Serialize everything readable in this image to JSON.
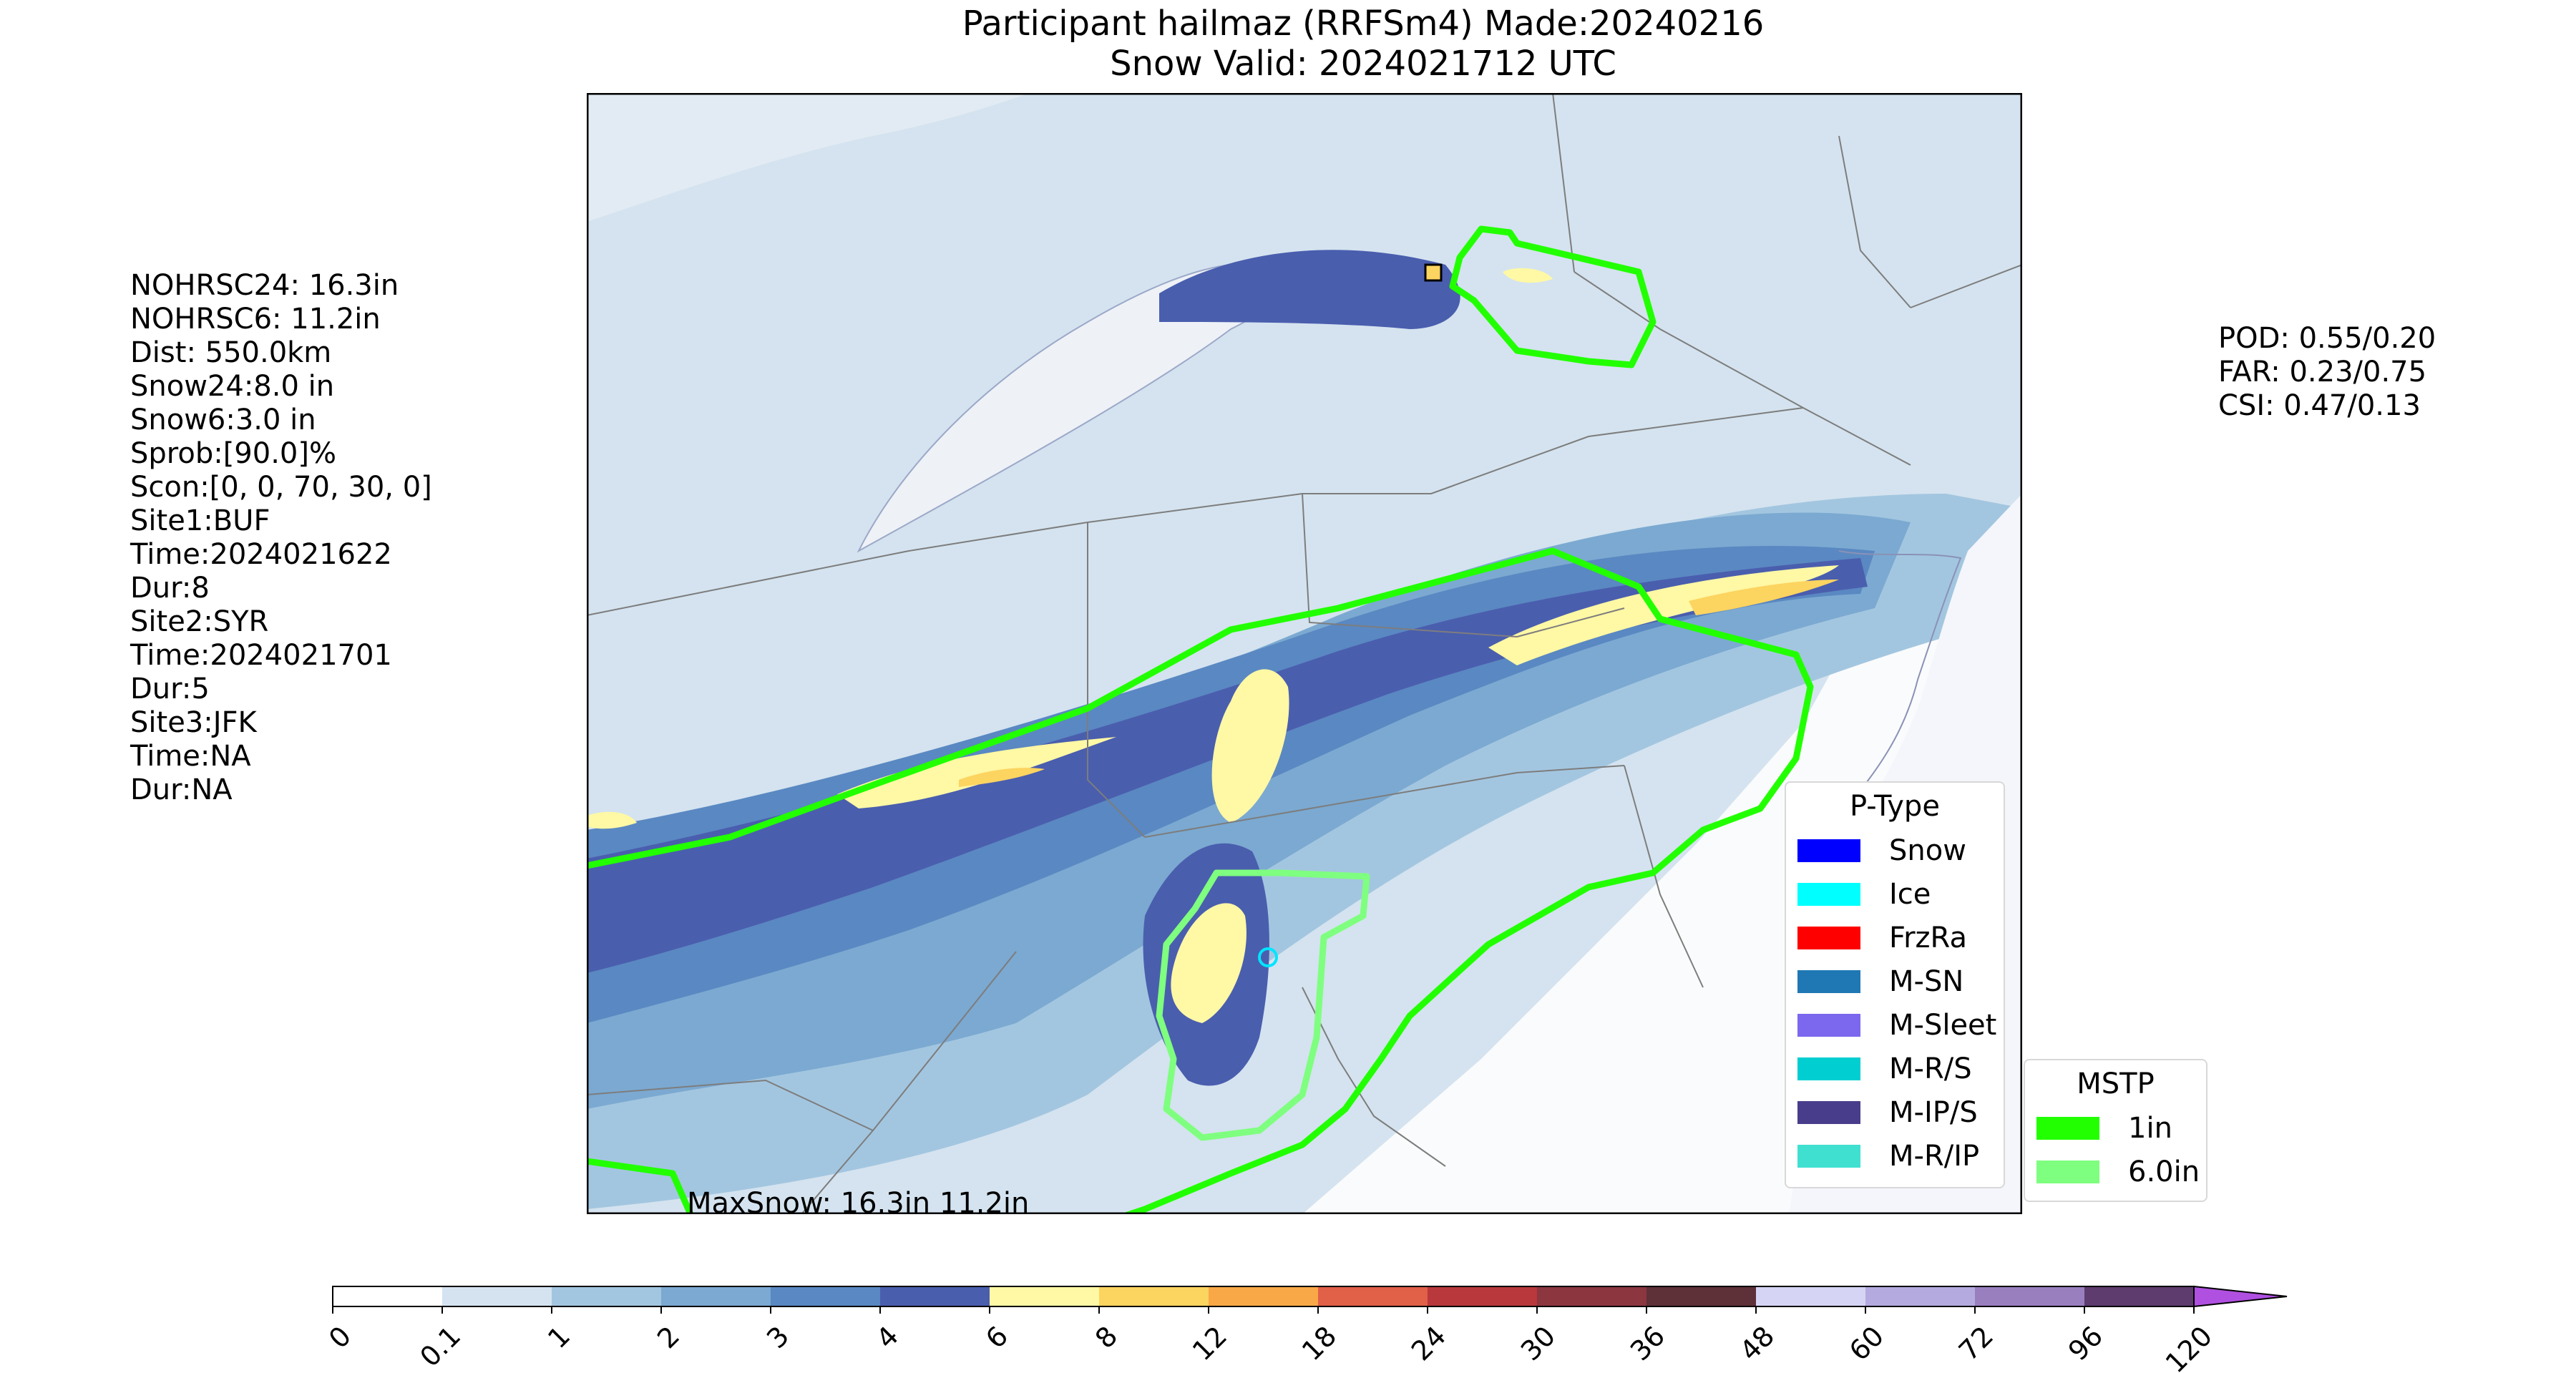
{
  "title_line1": "Participant hailmaz (RRFSm4) Made:20240216",
  "title_line2": "Snow Valid: 2024021712 UTC",
  "left_stats": [
    "NOHRSC24: 16.3in",
    "NOHRSC6: 11.2in",
    "Dist: 550.0km",
    "Snow24:8.0 in",
    "Snow6:3.0 in",
    "Sprob:[90.0]%",
    "Scon:[0, 0, 70, 30, 0]",
    "Site1:BUF",
    "Time:2024021622",
    "Dur:8",
    "Site2:SYR",
    "Time:2024021701",
    "Dur:5",
    "Site3:JFK",
    "Time:NA",
    "Dur:NA"
  ],
  "right_scores": [
    "POD: 0.55/0.20",
    "FAR: 0.23/0.75",
    "CSI: 0.47/0.13"
  ],
  "map_annotation": "MaxSnow: 16.3in 11.2in",
  "ptype_legend": {
    "title": "P-Type",
    "items": [
      {
        "label": "Snow",
        "color": "#0000ff"
      },
      {
        "label": "Ice",
        "color": "#00ffff"
      },
      {
        "label": "FrzRa",
        "color": "#ff0000"
      },
      {
        "label": "M-SN",
        "color": "#1f78b4"
      },
      {
        "label": "M-Sleet",
        "color": "#7b68ee"
      },
      {
        "label": "M-R/S",
        "color": "#00ced1"
      },
      {
        "label": "M-IP/S",
        "color": "#483d8b"
      },
      {
        "label": "M-R/IP",
        "color": "#40e0d0"
      }
    ]
  },
  "mstp_legend": {
    "title": "MSTP",
    "items": [
      {
        "label": "1in",
        "color": "#22ff00"
      },
      {
        "label": "6.0in",
        "color": "#7fff7f"
      }
    ]
  },
  "colorbar": {
    "ticks": [
      "0",
      "0.1",
      "1",
      "2",
      "3",
      "4",
      "6",
      "8",
      "12",
      "18",
      "24",
      "30",
      "36",
      "48",
      "60",
      "72",
      "96",
      "120"
    ],
    "colors": [
      "#ffffff",
      "#d4e3ef",
      "#a3c6e0",
      "#7ba9d1",
      "#5a88c2",
      "#4a5eae",
      "#fff8a5",
      "#fcd460",
      "#f9a848",
      "#e06048",
      "#b8383c",
      "#8c3640",
      "#5e3038",
      "#d6d4f4",
      "#b4aadf",
      "#9a7fbf",
      "#5e3c6e"
    ],
    "extend_color": "#b050e0"
  }
}
